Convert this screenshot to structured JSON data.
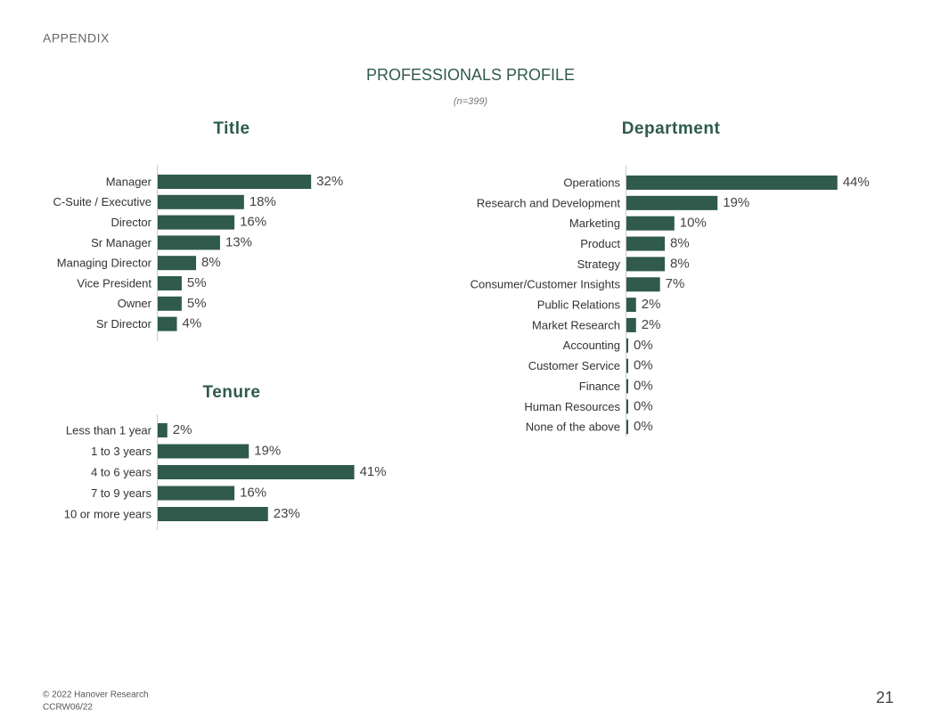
{
  "header": {
    "section": "APPENDIX",
    "title": "PROFESSIONALS PROFILE",
    "subtitle": "(n=399)"
  },
  "footer": {
    "copyright": "© 2022 Hanover Research",
    "code": "CCRW06/22",
    "page": "21"
  },
  "chart_data": [
    {
      "type": "bar",
      "title": "Title",
      "color": "#2f5a4c",
      "categories": [
        "Manager",
        "C-Suite / Executive",
        "Director",
        "Sr Manager",
        "Managing Director",
        "Vice President",
        "Owner",
        "Sr Director"
      ],
      "values": [
        32,
        18,
        16,
        13,
        8,
        5,
        5,
        4
      ],
      "value_labels": [
        "32%",
        "18%",
        "16%",
        "13%",
        "8%",
        "5%",
        "5%",
        "4%"
      ]
    },
    {
      "type": "bar",
      "title": "Department",
      "color": "#2f5a4c",
      "categories": [
        "Operations",
        "Research and  Development",
        "Marketing",
        "Product",
        "Strategy",
        "Consumer/Customer Insights",
        "Public Relations",
        "Market Research",
        "Accounting",
        "Customer Service",
        "Finance",
        "Human Resources",
        "None of the above"
      ],
      "values": [
        44,
        19,
        10,
        8,
        8,
        7,
        2,
        2,
        0,
        0,
        0,
        0,
        0
      ],
      "value_labels": [
        "44%",
        "19%",
        "10%",
        "8%",
        "8%",
        "7%",
        "2%",
        "2%",
        "0%",
        "0%",
        "0%",
        "0%",
        "0%"
      ]
    },
    {
      "type": "bar",
      "title": "Tenure",
      "color": "#2f5a4c",
      "categories": [
        "Less than 1 year",
        "1 to 3 years",
        "4 to 6 years",
        "7 to 9 years",
        "10 or more years"
      ],
      "values": [
        2,
        19,
        41,
        16,
        23
      ],
      "value_labels": [
        "2%",
        "19%",
        "41%",
        "16%",
        "23%"
      ]
    }
  ]
}
